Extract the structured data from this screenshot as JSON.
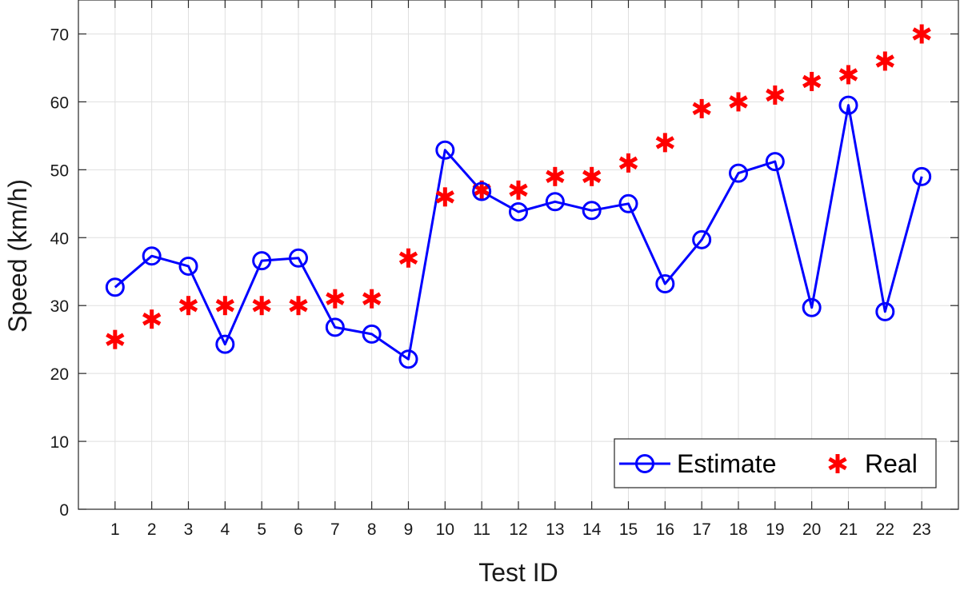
{
  "chart_data": {
    "type": "line",
    "title": "",
    "xlabel": "Test ID",
    "ylabel": "Speed (km/h)",
    "x": [
      1,
      2,
      3,
      4,
      5,
      6,
      7,
      8,
      9,
      10,
      11,
      12,
      13,
      14,
      15,
      16,
      17,
      18,
      19,
      20,
      21,
      22,
      23
    ],
    "xlim": [
      0,
      24
    ],
    "ylim": [
      0,
      75
    ],
    "x_ticks": [
      1,
      2,
      3,
      4,
      5,
      6,
      7,
      8,
      9,
      10,
      11,
      12,
      13,
      14,
      15,
      16,
      17,
      18,
      19,
      20,
      21,
      22,
      23
    ],
    "y_ticks": [
      0,
      10,
      20,
      30,
      40,
      50,
      60,
      70
    ],
    "grid": true,
    "legend_position": "bottom-right",
    "series": [
      {
        "name": "Estimate",
        "style": "line-circle",
        "color": "#0000ff",
        "values": [
          32.7,
          37.3,
          35.8,
          24.3,
          36.6,
          37.0,
          26.8,
          25.8,
          22.1,
          52.9,
          46.8,
          43.8,
          45.3,
          44.0,
          45.0,
          33.2,
          39.7,
          49.5,
          51.2,
          29.7,
          59.5,
          29.1,
          49.0
        ]
      },
      {
        "name": "Real",
        "style": "asterisk",
        "color": "#ff0000",
        "values": [
          25,
          28,
          30,
          30,
          30,
          30,
          31,
          31,
          37,
          46,
          47,
          47,
          49,
          49,
          51,
          54,
          59,
          60,
          61,
          63,
          64,
          66,
          70
        ]
      }
    ]
  }
}
